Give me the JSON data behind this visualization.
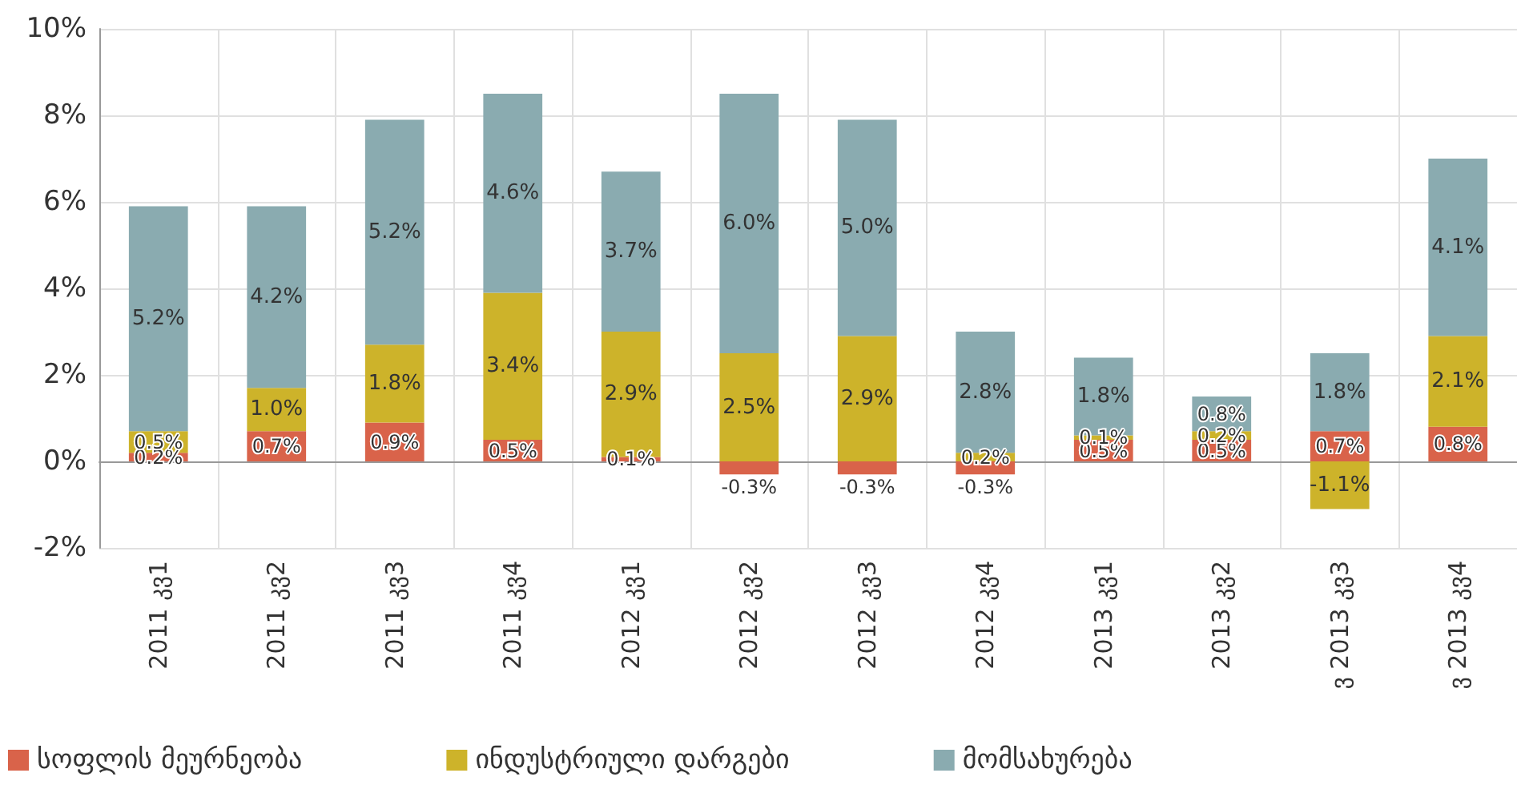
{
  "chart_data": {
    "type": "bar",
    "stacked": true,
    "categories": [
      "2011 კვ1",
      "2011 კვ2",
      "2011 კვ3",
      "2011 კვ4",
      "2012 კვ1",
      "2012 კვ2",
      "2012 კვ3",
      "2012 კვ4",
      "2013 კვ1",
      "2013 კვ2",
      "ვ 2013 კვ3",
      "ვ 2013 კვ4"
    ],
    "series": [
      {
        "name": "სოფლის მეურნეობა",
        "color": "#d9634a",
        "values": [
          0.2,
          0.7,
          0.9,
          0.5,
          0.1,
          -0.3,
          -0.3,
          -0.3,
          0.5,
          0.5,
          0.7,
          0.8
        ],
        "value_labels": [
          "0.2%",
          "0.7%",
          "0.9%",
          "0.5%",
          "0.1%",
          "-0.3%",
          "-0.3%",
          "-0.3%",
          "0.5%",
          "0.5%",
          "0.7%",
          "0.8%"
        ]
      },
      {
        "name": "ინდუსტრიული დარგები",
        "color": "#cdb32a",
        "values": [
          0.5,
          1.0,
          1.8,
          3.4,
          2.9,
          2.5,
          2.9,
          0.2,
          0.1,
          0.2,
          -1.1,
          2.1
        ],
        "value_labels": [
          "0.5%",
          "1.0%",
          "1.8%",
          "3.4%",
          "2.9%",
          "2.5%",
          "2.9%",
          "0.2%",
          "0.1%",
          "0.2%",
          "-1.1%",
          "2.1%"
        ]
      },
      {
        "name": "მომსახურება",
        "color": "#8aabb0",
        "values": [
          5.2,
          4.2,
          5.2,
          4.6,
          3.7,
          6.0,
          5.0,
          2.8,
          1.8,
          0.8,
          1.8,
          4.1
        ],
        "value_labels": [
          "5.2%",
          "4.2%",
          "5.2%",
          "4.6%",
          "3.7%",
          "6.0%",
          "5.0%",
          "2.8%",
          "1.8%",
          "0.8%",
          "1.8%",
          "4.1%"
        ]
      }
    ],
    "ylim": [
      -2,
      10
    ],
    "yticks": [
      {
        "value": -2,
        "label": "-2%"
      },
      {
        "value": 0,
        "label": "0%"
      },
      {
        "value": 2,
        "label": "2%"
      },
      {
        "value": 4,
        "label": "4%"
      },
      {
        "value": 6,
        "label": "6%"
      },
      {
        "value": 8,
        "label": "8%"
      },
      {
        "value": 10,
        "label": "10%"
      }
    ],
    "grid": true,
    "legend": "bottom"
  }
}
